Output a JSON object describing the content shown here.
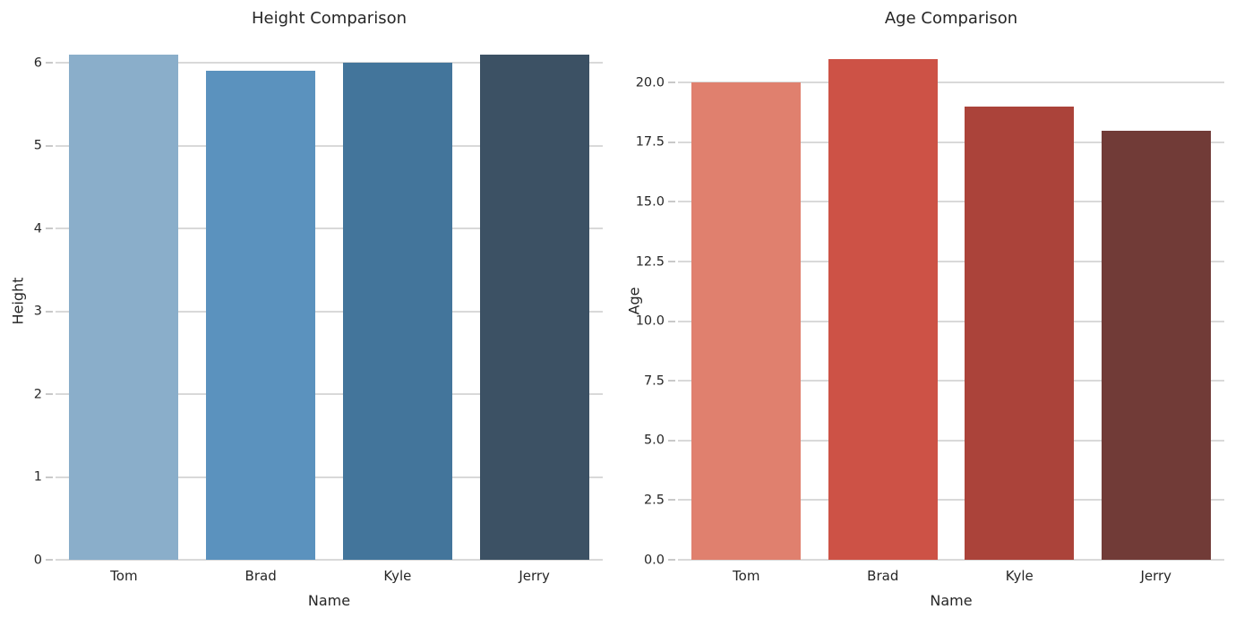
{
  "figure": {
    "background": "#ffffff",
    "text_color": "#262626",
    "gridline_color": "#d9d9d9",
    "tick_color": "#c9c9c9"
  },
  "chart_data": [
    {
      "type": "bar",
      "title": "Height Comparison",
      "xlabel": "Name",
      "ylabel": "Height",
      "categories": [
        "Tom",
        "Brad",
        "Kyle",
        "Jerry"
      ],
      "values": [
        6.1,
        5.9,
        6.0,
        6.1
      ],
      "bar_colors": [
        "#8aaeca",
        "#5b92be",
        "#43759b",
        "#3c5164"
      ],
      "yticks": [
        "0",
        "1",
        "2",
        "3",
        "4",
        "5",
        "6"
      ],
      "ylim": [
        0,
        6.25
      ],
      "grid": "horizontal",
      "legend": "none"
    },
    {
      "type": "bar",
      "title": "Age Comparison",
      "xlabel": "Name",
      "ylabel": "Age",
      "categories": [
        "Tom",
        "Brad",
        "Kyle",
        "Jerry"
      ],
      "values": [
        20,
        21,
        19,
        18
      ],
      "bar_colors": [
        "#e0806e",
        "#cd5246",
        "#ab433a",
        "#713b37"
      ],
      "yticks": [
        "0.0",
        "2.5",
        "5.0",
        "7.5",
        "10.0",
        "12.5",
        "15.0",
        "17.5",
        "20.0"
      ],
      "ylim": [
        0,
        21.7
      ],
      "grid": "horizontal",
      "legend": "none"
    }
  ]
}
